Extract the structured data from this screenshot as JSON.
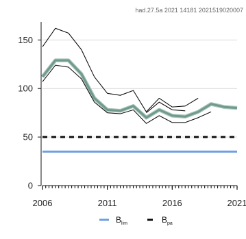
{
  "caption": "had.27.5a  2021  14181  2021519020007",
  "chart_data": {
    "type": "line",
    "title": "",
    "xlabel": "",
    "ylabel": "",
    "xlim": [
      2006,
      2021
    ],
    "ylim": [
      0,
      170
    ],
    "x_ticks": [
      2006,
      2011,
      2016,
      2021
    ],
    "y_ticks": [
      0,
      50,
      100,
      150
    ],
    "grid": true,
    "legend": "bottom",
    "series": [
      {
        "role": "estimate",
        "color": "#6f9a8d",
        "x": [
          2006,
          2007,
          2008,
          2009,
          2010,
          2011,
          2012,
          2013,
          2014,
          2015,
          2016,
          2017,
          2018,
          2019,
          2020,
          2021
        ],
        "values": [
          112,
          129,
          129,
          115,
          90,
          78,
          77,
          82,
          70,
          78,
          72,
          71,
          76,
          84,
          81,
          80
        ]
      },
      {
        "role": "upper-bound",
        "color": "#111111",
        "x": [
          2006,
          2007,
          2008,
          2009,
          2010,
          2011,
          2012,
          2013,
          2014,
          2015,
          2016,
          2017,
          2018
        ],
        "values": [
          143,
          162,
          157,
          140,
          112,
          95,
          93,
          98,
          76,
          90,
          81,
          82,
          90
        ]
      },
      {
        "role": "lower-bound",
        "color": "#111111",
        "x": [
          2006,
          2007,
          2008,
          2009,
          2010,
          2011,
          2012,
          2013,
          2014,
          2015,
          2016,
          2017,
          2018,
          2019
        ],
        "values": [
          107,
          124,
          122,
          110,
          86,
          75,
          74,
          78,
          64,
          72,
          65,
          65,
          70,
          76
        ]
      },
      {
        "role": "retrospective",
        "color": "#111111",
        "x": [
          2014,
          2015,
          2016,
          2017
        ],
        "values": [
          75,
          86,
          78,
          77
        ]
      }
    ],
    "reference_lines": [
      {
        "label": "B",
        "sub": "lim",
        "value": 35,
        "color": "#6f9fe0",
        "style": "solid"
      },
      {
        "label": "B",
        "sub": "pa",
        "value": 50,
        "color": "#111111",
        "style": "dashed"
      }
    ]
  }
}
